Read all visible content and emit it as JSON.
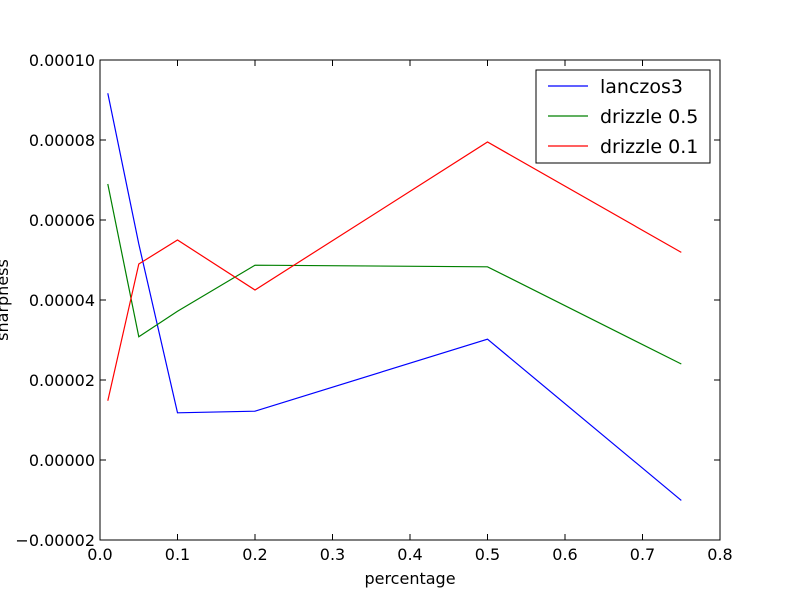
{
  "chart_data": {
    "type": "line",
    "xlabel": "percentage",
    "ylabel": "sharpness",
    "xlim": [
      0.0,
      0.8
    ],
    "ylim": [
      -2e-05,
      0.0001
    ],
    "x_ticks": [
      0.0,
      0.1,
      0.2,
      0.3,
      0.4,
      0.5,
      0.6,
      0.7,
      0.8
    ],
    "x_tick_labels": [
      "0.0",
      "0.1",
      "0.2",
      "0.3",
      "0.4",
      "0.5",
      "0.6",
      "0.7",
      "0.8"
    ],
    "y_ticks": [
      -2e-05,
      0.0,
      2e-05,
      4e-05,
      6e-05,
      8e-05,
      0.0001
    ],
    "y_tick_labels": [
      "−0.00002",
      "0.00000",
      "0.00002",
      "0.00004",
      "0.00006",
      "0.00008",
      "0.00010"
    ],
    "grid": false,
    "legend_position": "top-right",
    "x": [
      0.01,
      0.05,
      0.1,
      0.2,
      0.5,
      0.75
    ],
    "series": [
      {
        "name": "lanczos3",
        "color": "#0000ff",
        "values": [
          9.17e-05,
          5.4e-05,
          1.18e-05,
          1.22e-05,
          3.02e-05,
          -1.01e-05
        ]
      },
      {
        "name": "drizzle 0.5",
        "color": "#008000",
        "values": [
          6.9e-05,
          3.08e-05,
          3.72e-05,
          4.87e-05,
          4.83e-05,
          2.4e-05
        ]
      },
      {
        "name": "drizzle 0.1",
        "color": "#ff0000",
        "values": [
          1.48e-05,
          4.9e-05,
          5.5e-05,
          4.25e-05,
          7.95e-05,
          5.19e-05
        ]
      }
    ]
  }
}
